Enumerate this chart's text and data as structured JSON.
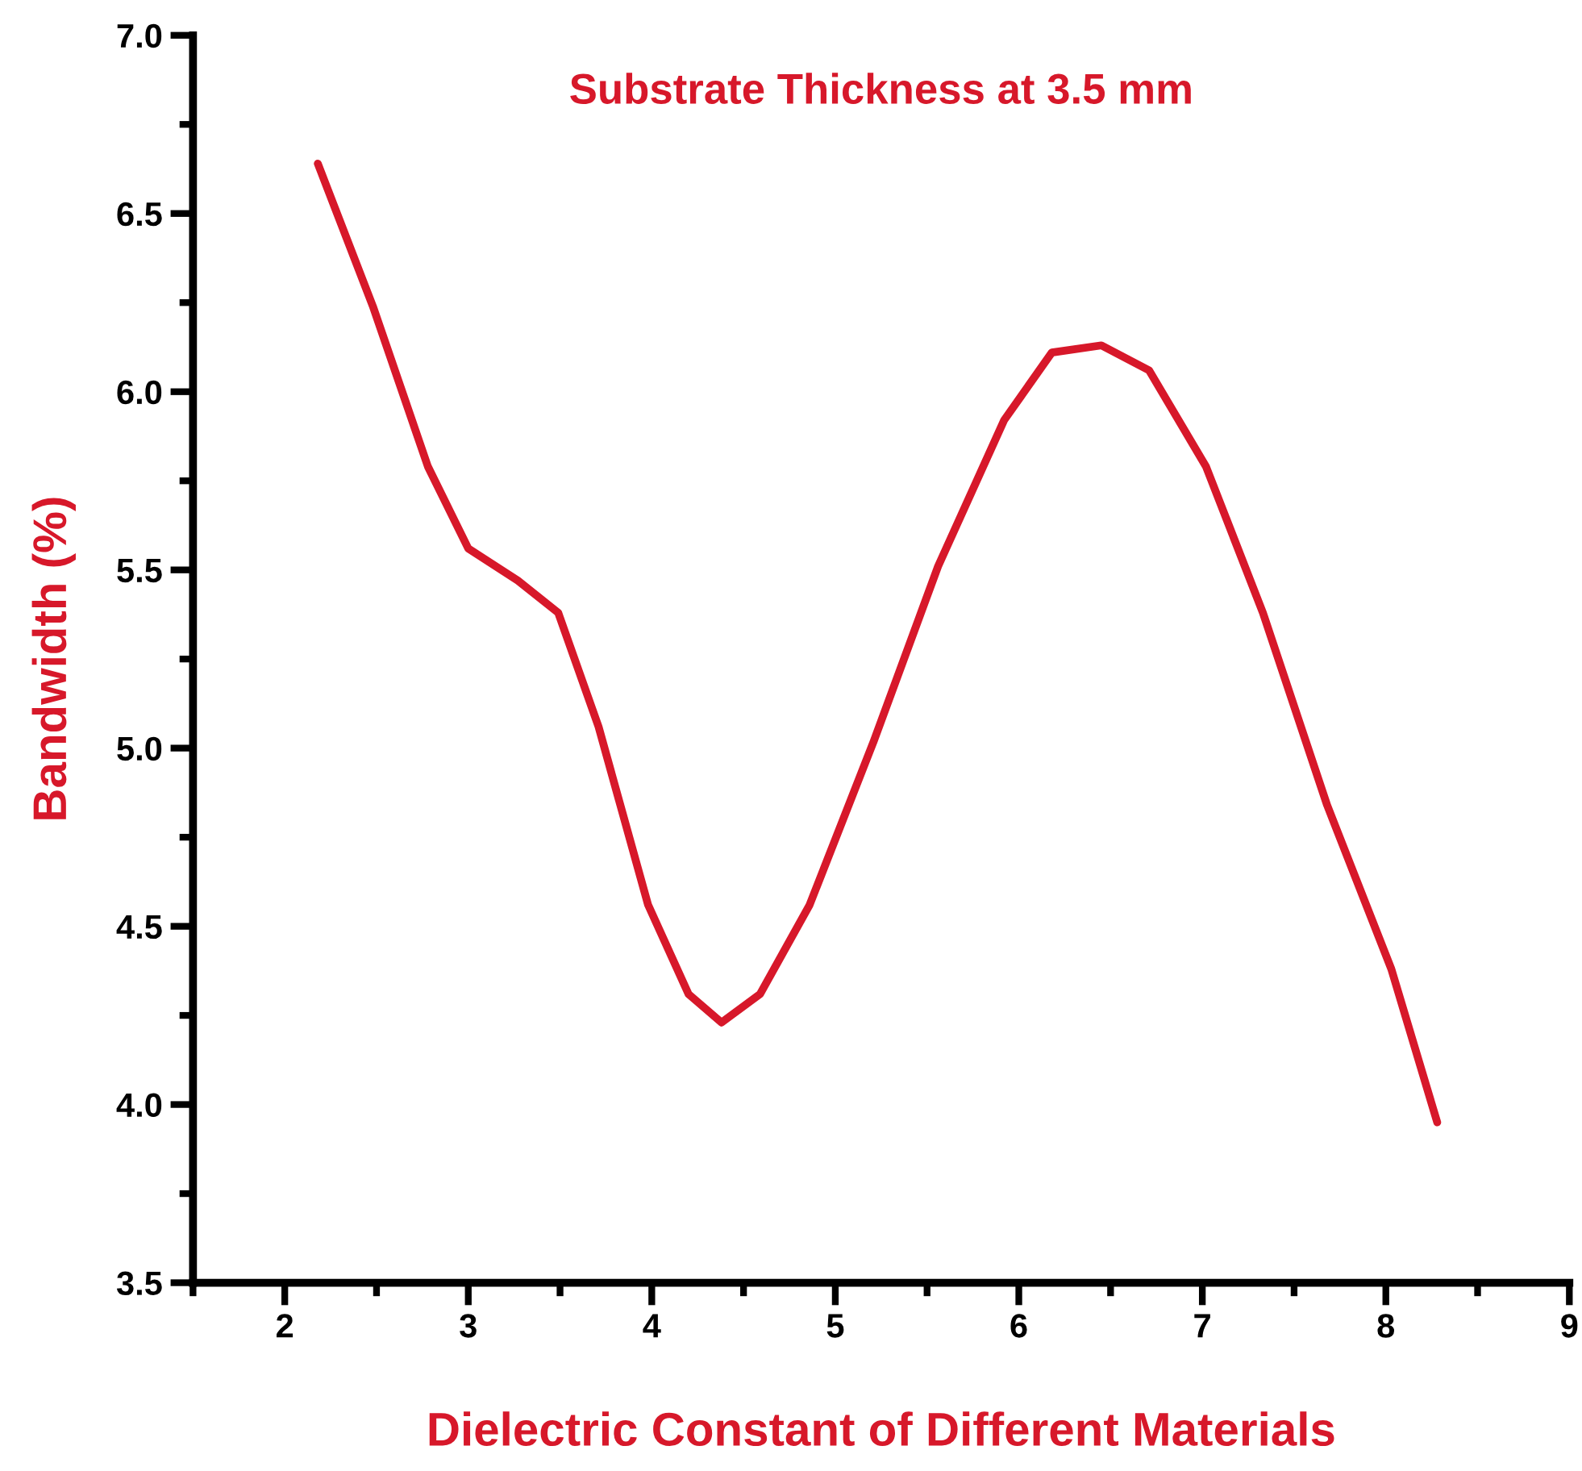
{
  "chart_data": {
    "type": "line",
    "title": "Substrate Thickness at 3.5 mm",
    "xlabel": "Dielectric Constant of Different Materials",
    "ylabel": "Bandwidth (%)",
    "xlim": [
      1.5,
      9
    ],
    "ylim": [
      3.5,
      7.0
    ],
    "xticks": [
      {
        "value": 1.5,
        "label": null
      },
      2,
      {
        "value": 2.5,
        "label": null
      },
      3,
      {
        "value": 3.5,
        "label": null
      },
      4,
      {
        "value": 4.5,
        "label": null
      },
      5,
      {
        "value": 5.5,
        "label": null
      },
      6,
      {
        "value": 6.5,
        "label": null
      },
      7,
      {
        "value": 7.5,
        "label": null
      },
      8,
      {
        "value": 8.5,
        "label": null
      },
      9
    ],
    "yticks": [
      {
        "value": 3.5,
        "label": "3.5"
      },
      {
        "value": 3.75,
        "label": null
      },
      {
        "value": 4.0,
        "label": "4.0"
      },
      {
        "value": 4.25,
        "label": null
      },
      {
        "value": 4.5,
        "label": "4.5"
      },
      {
        "value": 4.75,
        "label": null
      },
      {
        "value": 5.0,
        "label": "5.0"
      },
      {
        "value": 5.25,
        "label": null
      },
      {
        "value": 5.5,
        "label": "5.5"
      },
      {
        "value": 5.75,
        "label": null
      },
      {
        "value": 6.0,
        "label": "6.0"
      },
      {
        "value": 6.25,
        "label": null
      },
      {
        "value": 6.5,
        "label": "6.5"
      },
      {
        "value": 6.75,
        "label": null
      },
      {
        "value": 7.0,
        "label": "7.0"
      }
    ],
    "grid": false,
    "legend": false,
    "marker": "none",
    "line_style": "solid",
    "series": [
      {
        "color": "#d7182a",
        "x": [
          2.18,
          2.48,
          2.78,
          3.0,
          3.27,
          3.49,
          3.71,
          3.98,
          4.2,
          4.38,
          4.59,
          4.86,
          5.21,
          5.56,
          5.92,
          6.18,
          6.45,
          6.71,
          7.02,
          7.33,
          7.68,
          8.03,
          8.28
        ],
        "values": [
          6.64,
          6.24,
          5.79,
          5.56,
          5.47,
          5.38,
          5.06,
          4.56,
          4.31,
          4.23,
          4.31,
          4.56,
          5.02,
          5.51,
          5.92,
          6.11,
          6.13,
          6.06,
          5.79,
          5.38,
          4.84,
          4.38,
          3.95
        ]
      }
    ]
  }
}
